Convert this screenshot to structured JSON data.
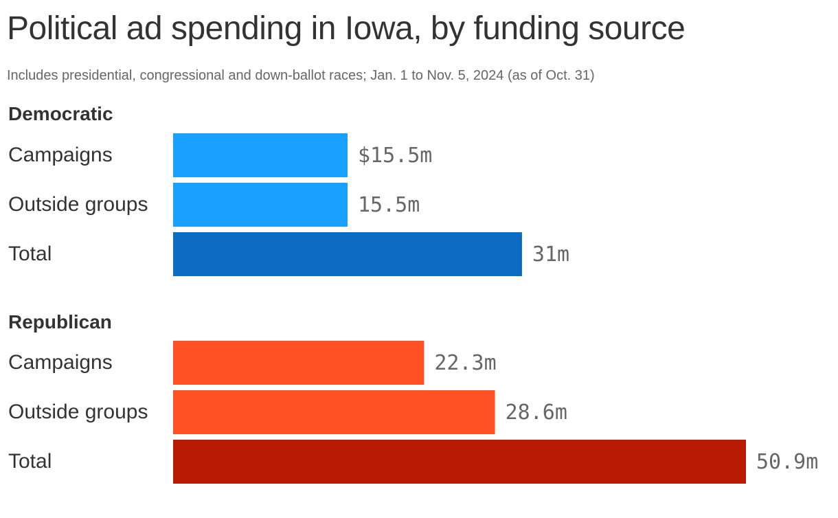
{
  "chart_data": {
    "type": "bar",
    "orientation": "horizontal",
    "title": "Political ad spending in Iowa, by funding source",
    "subtitle": "Includes presidential, congressional and down-ballot races; Jan. 1 to Nov. 5, 2024 (as of Oct. 31)",
    "xlim": [
      0,
      50.9
    ],
    "grid": false,
    "groups": [
      {
        "name": "Democratic",
        "bars": [
          {
            "category": "Campaigns",
            "value": 15.5,
            "label": "$15.5m",
            "color": "#18a1ff"
          },
          {
            "category": "Outside groups",
            "value": 15.5,
            "label": "15.5m",
            "color": "#18a1ff"
          },
          {
            "category": "Total",
            "value": 31,
            "label": "31m",
            "color": "#0b6cc2"
          }
        ]
      },
      {
        "name": "Republican",
        "bars": [
          {
            "category": "Campaigns",
            "value": 22.3,
            "label": "22.3m",
            "color": "#ff5124"
          },
          {
            "category": "Outside groups",
            "value": 28.6,
            "label": "28.6m",
            "color": "#ff5124"
          },
          {
            "category": "Total",
            "value": 50.9,
            "label": "50.9m",
            "color": "#b81b02"
          }
        ]
      }
    ]
  }
}
